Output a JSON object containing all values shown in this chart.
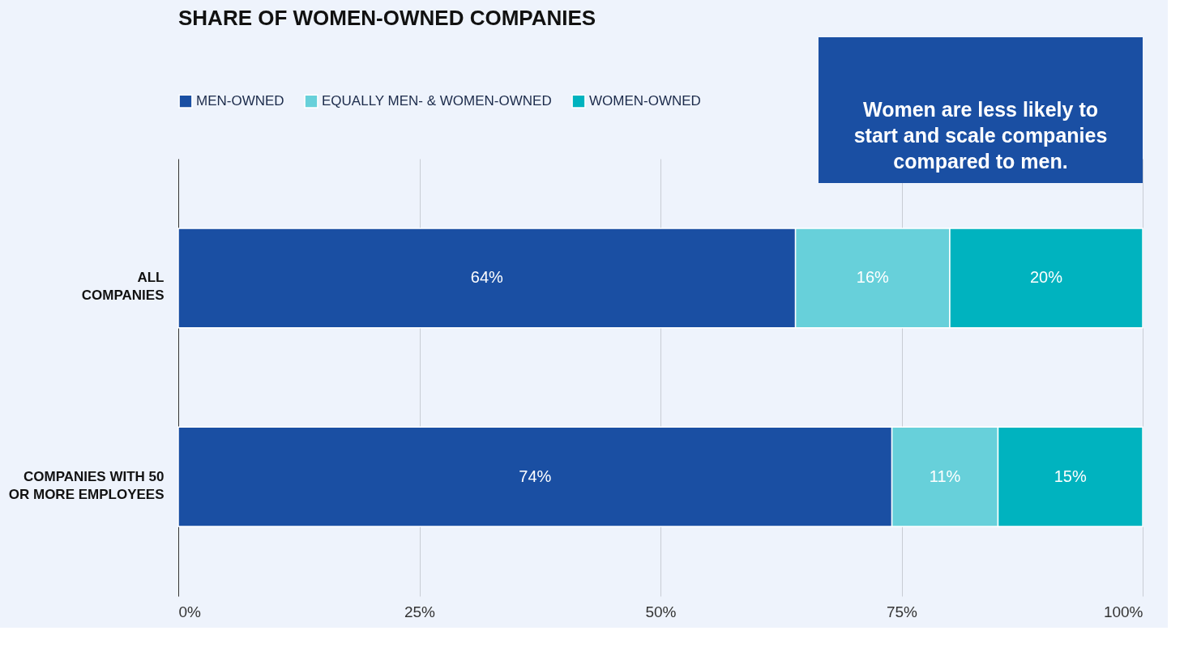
{
  "chart_data": {
    "type": "bar",
    "orientation": "horizontal",
    "stacked": true,
    "title": "SHARE OF WOMEN-OWNED COMPANIES",
    "categories": [
      "ALL COMPANIES",
      "COMPANIES WITH 50 OR MORE EMPLOYEES"
    ],
    "series": [
      {
        "name": "MEN-OWNED",
        "color": "#1a4fa3",
        "values": [
          64,
          74
        ],
        "value_labels": [
          "64%",
          "74%"
        ]
      },
      {
        "name": "EQUALLY MEN- & WOMEN-OWNED",
        "color": "#67d0da",
        "values": [
          16,
          11
        ],
        "value_labels": [
          "16%",
          "11%"
        ]
      },
      {
        "name": "WOMEN-OWNED",
        "color": "#00b3bf",
        "values": [
          20,
          15
        ],
        "value_labels": [
          "20%",
          "15%"
        ]
      }
    ],
    "xlim": [
      0,
      100
    ],
    "xticks": [
      {
        "value": 0,
        "label": "0%"
      },
      {
        "value": 25,
        "label": "25%"
      },
      {
        "value": 50,
        "label": "50%"
      },
      {
        "value": 75,
        "label": "75%"
      },
      {
        "value": 100,
        "label": "100%"
      }
    ],
    "grid": "x",
    "legend": "top left",
    "annotations": [
      "Women are less likely to start and scale companies compared to men."
    ]
  }
}
